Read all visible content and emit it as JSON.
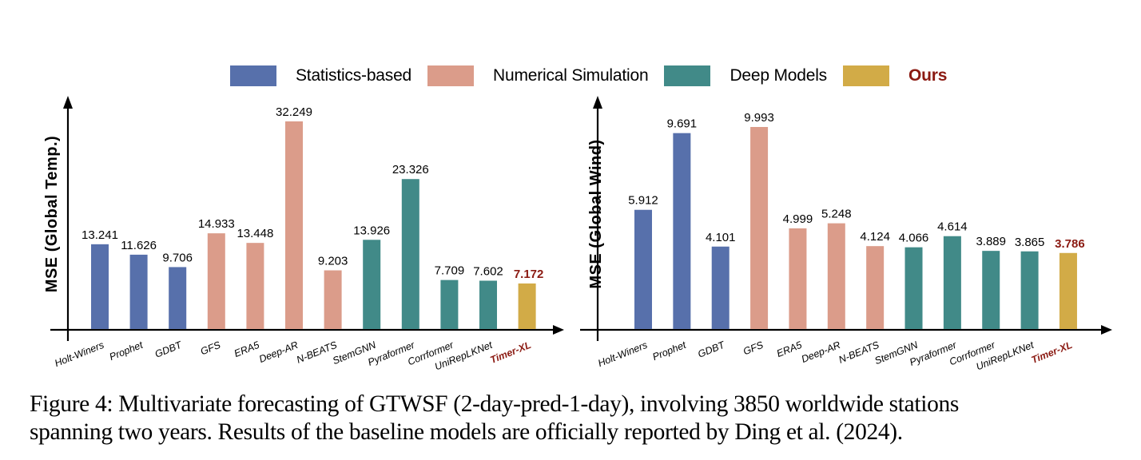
{
  "legend": [
    {
      "label": "Statistics-based",
      "color": "#5770ab",
      "group": "stat"
    },
    {
      "label": "Numerical Simulation",
      "color": "#db9c8a",
      "group": "num"
    },
    {
      "label": "Deep Models",
      "color": "#418a88",
      "group": "deep"
    },
    {
      "label": "Ours",
      "color": "#d2ab47",
      "group": "ours"
    }
  ],
  "colors": {
    "stat": "#5770ab",
    "num": "#db9c8a",
    "deep": "#418a88",
    "ours": "#d2ab47",
    "ours_text": "#8b1a12",
    "axis": "#000000"
  },
  "chart_data": [
    {
      "type": "bar",
      "title": "",
      "xlabel": "",
      "ylabel": "MSE (Global Temp.)",
      "ylim": [
        0,
        34
      ],
      "grid": false,
      "legend": "top-center",
      "categories": [
        "Holt-Winers",
        "Prophet",
        "GDBT",
        "GFS",
        "ERA5",
        "Deep-AR",
        "N-BEATS",
        "StemGNN",
        "Pyraformer",
        "Corrformer",
        "UniRepLKNet",
        "Timer-XL"
      ],
      "groups": [
        "stat",
        "stat",
        "stat",
        "num",
        "num",
        "num",
        "num",
        "deep",
        "deep",
        "deep",
        "deep",
        "ours"
      ],
      "values": [
        13.241,
        11.626,
        9.706,
        14.933,
        13.448,
        32.249,
        9.203,
        13.926,
        23.326,
        7.709,
        7.602,
        7.172
      ],
      "value_labels": [
        "13.241",
        "11.626",
        "9.706",
        "14.933",
        "13.448",
        "32.249",
        "9.203",
        "13.926",
        "23.326",
        "7.709",
        "7.602",
        "7.172"
      ]
    },
    {
      "type": "bar",
      "title": "",
      "xlabel": "",
      "ylabel": "MSE (Global Wind)",
      "ylim": [
        0,
        10.5
      ],
      "grid": false,
      "legend": "top-center",
      "categories": [
        "Holt-Winers",
        "Prophet",
        "GDBT",
        "GFS",
        "ERA5",
        "Deep-AR",
        "N-BEATS",
        "StemGNN",
        "Pyraformer",
        "Corrformer",
        "UniRepLKNet",
        "Timer-XL"
      ],
      "groups": [
        "stat",
        "stat",
        "stat",
        "num",
        "num",
        "num",
        "num",
        "deep",
        "deep",
        "deep",
        "deep",
        "ours"
      ],
      "values": [
        5.912,
        9.691,
        4.101,
        9.993,
        4.999,
        5.248,
        4.124,
        4.066,
        4.614,
        3.889,
        3.865,
        3.786
      ],
      "value_labels": [
        "5.912",
        "9.691",
        "4.101",
        "9.993",
        "4.999",
        "5.248",
        "4.124",
        "4.066",
        "4.614",
        "3.889",
        "3.865",
        "3.786"
      ]
    }
  ],
  "caption": {
    "line1": "Figure 4: Multivariate forecasting of GTWSF (2-day-pred-1-day), involving 3850 worldwide stations",
    "line2": "spanning two years. Results of the baseline models are officially reported by Ding et al. (2024)."
  }
}
